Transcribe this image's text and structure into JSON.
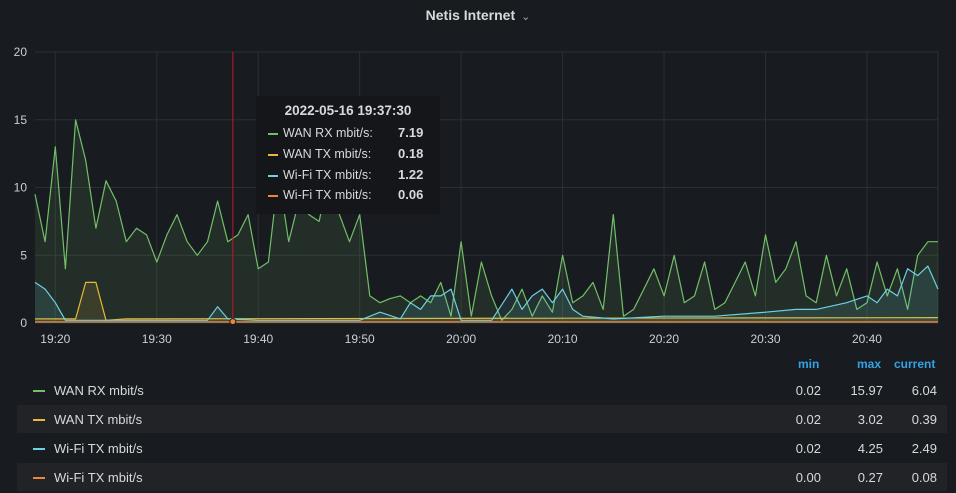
{
  "panel": {
    "title": "Netis Internet"
  },
  "chart_data": {
    "type": "area",
    "title": "Netis Internet",
    "x_ticks": [
      "19:20",
      "19:30",
      "19:40",
      "19:50",
      "20:00",
      "20:10",
      "20:20",
      "20:30",
      "20:40"
    ],
    "y_ticks": [
      "0",
      "5",
      "10",
      "15",
      "20"
    ],
    "ylim": [
      0,
      20
    ],
    "xlim": [
      "19:18",
      "20:47"
    ],
    "grid": true,
    "cursor_time": "19:37:30",
    "series": [
      {
        "name": "WAN RX mbit/s",
        "color": "#73bf69",
        "x": [
          "19:18",
          "19:19",
          "19:20",
          "19:21",
          "19:22",
          "19:23",
          "19:24",
          "19:25",
          "19:26",
          "19:27",
          "19:28",
          "19:29",
          "19:30",
          "19:31",
          "19:32",
          "19:33",
          "19:34",
          "19:35",
          "19:36",
          "19:37",
          "19:38",
          "19:39",
          "19:40",
          "19:41",
          "19:42",
          "19:43",
          "19:44",
          "19:45",
          "19:46",
          "19:47",
          "19:48",
          "19:49",
          "19:50",
          "19:51",
          "19:52",
          "19:53",
          "19:54",
          "19:55",
          "19:56",
          "19:57",
          "19:58",
          "19:59",
          "20:00",
          "20:01",
          "20:02",
          "20:03",
          "20:04",
          "20:05",
          "20:06",
          "20:07",
          "20:08",
          "20:09",
          "20:10",
          "20:11",
          "20:12",
          "20:13",
          "20:14",
          "20:15",
          "20:16",
          "20:17",
          "20:18",
          "20:19",
          "20:20",
          "20:21",
          "20:22",
          "20:23",
          "20:24",
          "20:25",
          "20:26",
          "20:27",
          "20:28",
          "20:29",
          "20:30",
          "20:31",
          "20:32",
          "20:33",
          "20:34",
          "20:35",
          "20:36",
          "20:37",
          "20:38",
          "20:39",
          "20:40",
          "20:41",
          "20:42",
          "20:43",
          "20:44",
          "20:45",
          "20:46",
          "20:47"
        ],
        "values": [
          9.5,
          6,
          13,
          4,
          15,
          12,
          7,
          10.5,
          9,
          6,
          7,
          6.5,
          4.5,
          6.5,
          8,
          6,
          5,
          6,
          9,
          6,
          6.5,
          8,
          4,
          4.5,
          11,
          6,
          9,
          8,
          7.5,
          11,
          8,
          6,
          8,
          2,
          1.5,
          1.8,
          2,
          1.5,
          2,
          1.5,
          3,
          0.5,
          6,
          0.5,
          4.5,
          2,
          0.2,
          1,
          2.5,
          0.5,
          2,
          0.8,
          5,
          1.5,
          2,
          3,
          1,
          8,
          0.5,
          1,
          2.5,
          4,
          2,
          5,
          1.5,
          2,
          4.5,
          1,
          1.5,
          3,
          4.5,
          2,
          6.5,
          3,
          4,
          6,
          2,
          1.5,
          5,
          2,
          4,
          1,
          1.5,
          4.5,
          2,
          4,
          1,
          5,
          6,
          6
        ]
      },
      {
        "name": "WAN TX mbit/s",
        "color": "#eab839",
        "x": [
          "19:18",
          "19:20",
          "19:22",
          "19:23",
          "19:24",
          "19:25",
          "19:27",
          "20:47"
        ],
        "values": [
          0.3,
          0.3,
          0.3,
          3,
          3,
          0.2,
          0.3,
          0.4
        ]
      },
      {
        "name": "Wi-Fi TX mbit/s",
        "color": "#6ed0e0",
        "x": [
          "19:18",
          "19:19",
          "19:20",
          "19:21",
          "19:25",
          "19:30",
          "19:35",
          "19:36",
          "19:37",
          "19:40",
          "19:50",
          "19:52",
          "19:54",
          "19:55",
          "19:56",
          "19:57",
          "19:58",
          "19:59",
          "20:00",
          "20:02",
          "20:03",
          "20:05",
          "20:06",
          "20:07",
          "20:08",
          "20:09",
          "20:10",
          "20:11",
          "20:12",
          "20:15",
          "20:20",
          "20:25",
          "20:30",
          "20:33",
          "20:35",
          "20:38",
          "20:40",
          "20:41",
          "20:42",
          "20:43",
          "20:44",
          "20:45",
          "20:46",
          "20:47"
        ],
        "values": [
          3,
          2.5,
          1.5,
          0.2,
          0.2,
          0.2,
          0.2,
          1.2,
          0.3,
          0.2,
          0.2,
          0.8,
          0.3,
          1.5,
          1,
          2,
          2,
          2.5,
          0.2,
          0.2,
          0.2,
          2.5,
          1,
          2,
          2.5,
          1.5,
          2.5,
          1,
          0.5,
          0.3,
          0.5,
          0.5,
          0.8,
          1,
          1,
          1.5,
          2,
          1.5,
          2.5,
          2,
          4,
          3.5,
          4.2,
          2.5
        ]
      },
      {
        "name": "Wi-Fi TX mbit/s",
        "color": "#ef843c",
        "x": [
          "19:18",
          "20:47"
        ],
        "values": [
          0.08,
          0.08
        ]
      }
    ],
    "legend_placement": "bottom"
  },
  "tooltip": {
    "time": "2022-05-16 19:37:30",
    "rows": [
      {
        "name": "WAN RX mbit/s:",
        "value": "7.19",
        "color": "#73bf69"
      },
      {
        "name": "WAN TX mbit/s:",
        "value": "0.18",
        "color": "#eab839"
      },
      {
        "name": "Wi-Fi TX mbit/s:",
        "value": "1.22",
        "color": "#6ed0e0"
      },
      {
        "name": "Wi-Fi TX mbit/s:",
        "value": "0.06",
        "color": "#ef843c"
      }
    ]
  },
  "legend": {
    "headers": {
      "min": "min",
      "max": "max",
      "current": "current"
    },
    "rows": [
      {
        "name": "WAN RX mbit/s",
        "color": "#73bf69",
        "min": "0.02",
        "max": "15.97",
        "current": "6.04"
      },
      {
        "name": "WAN TX mbit/s",
        "color": "#eab839",
        "min": "0.02",
        "max": "3.02",
        "current": "0.39"
      },
      {
        "name": "Wi-Fi TX mbit/s",
        "color": "#6ed0e0",
        "min": "0.02",
        "max": "4.25",
        "current": "2.49"
      },
      {
        "name": "Wi-Fi TX mbit/s",
        "color": "#ef843c",
        "min": "0.00",
        "max": "0.27",
        "current": "0.08"
      }
    ]
  }
}
